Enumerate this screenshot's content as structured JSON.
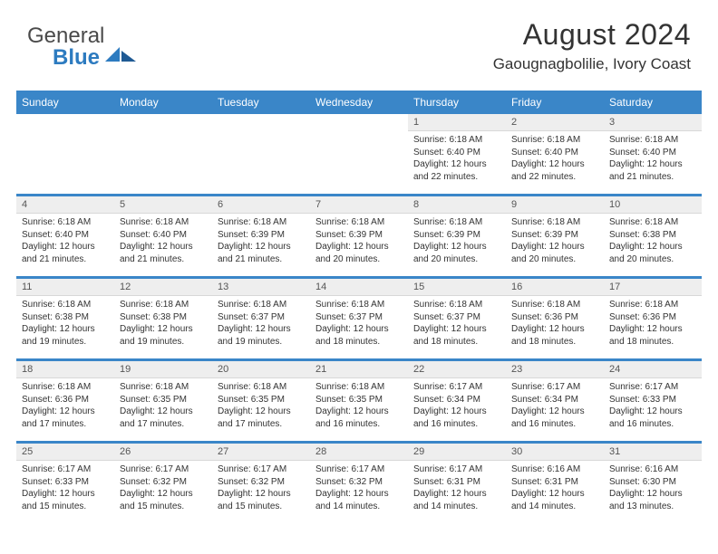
{
  "brand": {
    "part1": "General",
    "part2": "Blue",
    "color": "#2d7bc0"
  },
  "title": {
    "month_year": "August 2024",
    "location": "Gaougnagbolilie, Ivory Coast"
  },
  "style": {
    "header_bg": "#3a86c8",
    "daynum_bg": "#eeeeee",
    "text_color": "#323232",
    "page_bg": "#ffffff"
  },
  "day_names": [
    "Sunday",
    "Monday",
    "Tuesday",
    "Wednesday",
    "Thursday",
    "Friday",
    "Saturday"
  ],
  "weeks": [
    [
      {
        "blank": true
      },
      {
        "blank": true
      },
      {
        "blank": true
      },
      {
        "blank": true
      },
      {
        "n": "1",
        "sunrise": "6:18 AM",
        "sunset": "6:40 PM",
        "daylight": "12 hours and 22 minutes."
      },
      {
        "n": "2",
        "sunrise": "6:18 AM",
        "sunset": "6:40 PM",
        "daylight": "12 hours and 22 minutes."
      },
      {
        "n": "3",
        "sunrise": "6:18 AM",
        "sunset": "6:40 PM",
        "daylight": "12 hours and 21 minutes."
      }
    ],
    [
      {
        "n": "4",
        "sunrise": "6:18 AM",
        "sunset": "6:40 PM",
        "daylight": "12 hours and 21 minutes."
      },
      {
        "n": "5",
        "sunrise": "6:18 AM",
        "sunset": "6:40 PM",
        "daylight": "12 hours and 21 minutes."
      },
      {
        "n": "6",
        "sunrise": "6:18 AM",
        "sunset": "6:39 PM",
        "daylight": "12 hours and 21 minutes."
      },
      {
        "n": "7",
        "sunrise": "6:18 AM",
        "sunset": "6:39 PM",
        "daylight": "12 hours and 20 minutes."
      },
      {
        "n": "8",
        "sunrise": "6:18 AM",
        "sunset": "6:39 PM",
        "daylight": "12 hours and 20 minutes."
      },
      {
        "n": "9",
        "sunrise": "6:18 AM",
        "sunset": "6:39 PM",
        "daylight": "12 hours and 20 minutes."
      },
      {
        "n": "10",
        "sunrise": "6:18 AM",
        "sunset": "6:38 PM",
        "daylight": "12 hours and 20 minutes."
      }
    ],
    [
      {
        "n": "11",
        "sunrise": "6:18 AM",
        "sunset": "6:38 PM",
        "daylight": "12 hours and 19 minutes."
      },
      {
        "n": "12",
        "sunrise": "6:18 AM",
        "sunset": "6:38 PM",
        "daylight": "12 hours and 19 minutes."
      },
      {
        "n": "13",
        "sunrise": "6:18 AM",
        "sunset": "6:37 PM",
        "daylight": "12 hours and 19 minutes."
      },
      {
        "n": "14",
        "sunrise": "6:18 AM",
        "sunset": "6:37 PM",
        "daylight": "12 hours and 18 minutes."
      },
      {
        "n": "15",
        "sunrise": "6:18 AM",
        "sunset": "6:37 PM",
        "daylight": "12 hours and 18 minutes."
      },
      {
        "n": "16",
        "sunrise": "6:18 AM",
        "sunset": "6:36 PM",
        "daylight": "12 hours and 18 minutes."
      },
      {
        "n": "17",
        "sunrise": "6:18 AM",
        "sunset": "6:36 PM",
        "daylight": "12 hours and 18 minutes."
      }
    ],
    [
      {
        "n": "18",
        "sunrise": "6:18 AM",
        "sunset": "6:36 PM",
        "daylight": "12 hours and 17 minutes."
      },
      {
        "n": "19",
        "sunrise": "6:18 AM",
        "sunset": "6:35 PM",
        "daylight": "12 hours and 17 minutes."
      },
      {
        "n": "20",
        "sunrise": "6:18 AM",
        "sunset": "6:35 PM",
        "daylight": "12 hours and 17 minutes."
      },
      {
        "n": "21",
        "sunrise": "6:18 AM",
        "sunset": "6:35 PM",
        "daylight": "12 hours and 16 minutes."
      },
      {
        "n": "22",
        "sunrise": "6:17 AM",
        "sunset": "6:34 PM",
        "daylight": "12 hours and 16 minutes."
      },
      {
        "n": "23",
        "sunrise": "6:17 AM",
        "sunset": "6:34 PM",
        "daylight": "12 hours and 16 minutes."
      },
      {
        "n": "24",
        "sunrise": "6:17 AM",
        "sunset": "6:33 PM",
        "daylight": "12 hours and 16 minutes."
      }
    ],
    [
      {
        "n": "25",
        "sunrise": "6:17 AM",
        "sunset": "6:33 PM",
        "daylight": "12 hours and 15 minutes."
      },
      {
        "n": "26",
        "sunrise": "6:17 AM",
        "sunset": "6:32 PM",
        "daylight": "12 hours and 15 minutes."
      },
      {
        "n": "27",
        "sunrise": "6:17 AM",
        "sunset": "6:32 PM",
        "daylight": "12 hours and 15 minutes."
      },
      {
        "n": "28",
        "sunrise": "6:17 AM",
        "sunset": "6:32 PM",
        "daylight": "12 hours and 14 minutes."
      },
      {
        "n": "29",
        "sunrise": "6:17 AM",
        "sunset": "6:31 PM",
        "daylight": "12 hours and 14 minutes."
      },
      {
        "n": "30",
        "sunrise": "6:16 AM",
        "sunset": "6:31 PM",
        "daylight": "12 hours and 14 minutes."
      },
      {
        "n": "31",
        "sunrise": "6:16 AM",
        "sunset": "6:30 PM",
        "daylight": "12 hours and 13 minutes."
      }
    ]
  ],
  "labels": {
    "sunrise": "Sunrise:",
    "sunset": "Sunset:",
    "daylight": "Daylight:"
  }
}
